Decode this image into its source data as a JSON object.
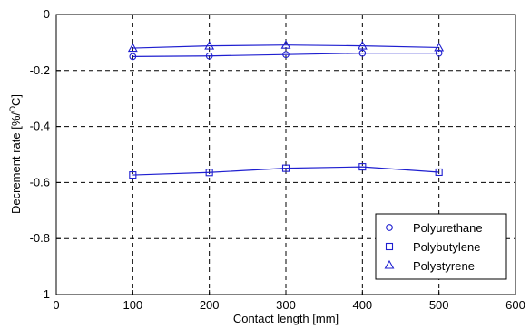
{
  "chart_data": {
    "type": "line",
    "xlabel": "Contact length [mm]",
    "ylabel_prefix": "Decrement rate [%/",
    "ylabel_sup": "O",
    "ylabel_suffix": "C]",
    "xlim": [
      0,
      600
    ],
    "ylim": [
      -1,
      0
    ],
    "xticks": [
      0,
      100,
      200,
      300,
      400,
      500,
      600
    ],
    "yticks": [
      -1,
      -0.8,
      -0.6,
      -0.4,
      -0.2,
      0
    ],
    "xtick_labels": [
      "0",
      "100",
      "200",
      "300",
      "400",
      "500",
      "600"
    ],
    "ytick_labels": [
      "-1",
      "-0.8",
      "-0.6",
      "-0.4",
      "-0.2",
      "0"
    ],
    "grid": true,
    "legend_position": "bottom-right",
    "x": [
      100,
      200,
      300,
      400,
      500
    ],
    "series": [
      {
        "name": "Polyurethane",
        "marker": "circle",
        "values": [
          -0.15,
          -0.148,
          -0.143,
          -0.138,
          -0.138
        ]
      },
      {
        "name": "Polybutylene",
        "marker": "square",
        "values": [
          -0.573,
          -0.564,
          -0.549,
          -0.544,
          -0.563
        ]
      },
      {
        "name": "Polystyrene",
        "marker": "triangle",
        "values": [
          -0.12,
          -0.112,
          -0.109,
          -0.112,
          -0.118
        ]
      }
    ],
    "color": "#1f1fd0"
  }
}
